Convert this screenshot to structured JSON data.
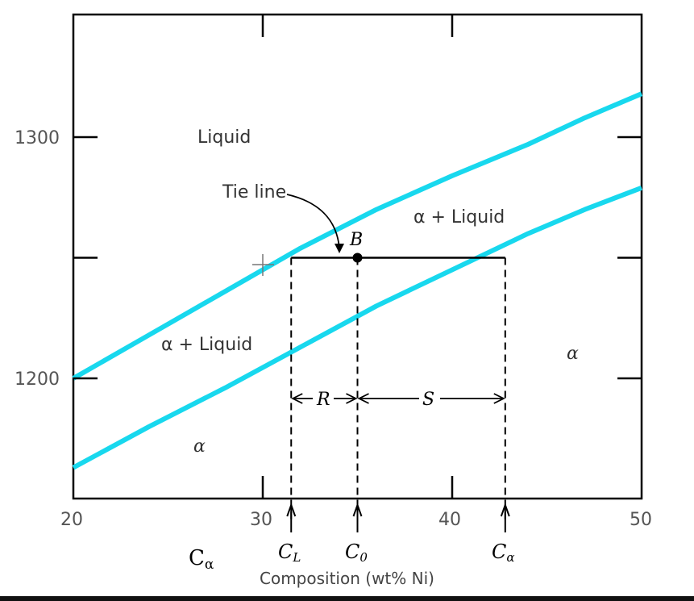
{
  "chart_data": {
    "type": "phase-diagram",
    "xlabel": "Composition (wt% Ni)",
    "xlim": [
      20,
      50
    ],
    "ylim": [
      1150,
      1350
    ],
    "x_ticks": [
      "20",
      "30",
      "40",
      "50"
    ],
    "y_ticks": [
      "1300",
      "1200"
    ],
    "curves": [
      {
        "name": "liquidus",
        "color": "#18d8ee",
        "points": [
          [
            20,
            1200
          ],
          [
            24,
            1218
          ],
          [
            28,
            1236
          ],
          [
            32,
            1254
          ],
          [
            36,
            1270
          ],
          [
            40,
            1284
          ],
          [
            44,
            1297
          ],
          [
            47,
            1308
          ],
          [
            50,
            1318
          ]
        ]
      },
      {
        "name": "solidus",
        "color": "#18d8ee",
        "points": [
          [
            20,
            1163
          ],
          [
            24,
            1180
          ],
          [
            28,
            1196
          ],
          [
            32,
            1213
          ],
          [
            36,
            1230
          ],
          [
            40,
            1245
          ],
          [
            44,
            1260
          ],
          [
            47,
            1270
          ],
          [
            50,
            1279
          ]
        ]
      }
    ],
    "tie_line": {
      "temperature": 1250,
      "x_from": 31.5,
      "x_to": 42.8
    },
    "point_B": {
      "x": 35,
      "y": 1250,
      "label": "B"
    },
    "region_labels": {
      "liquid": "Liquid",
      "alpha_liquid_upper": "α + Liquid",
      "alpha_liquid_lower": "α + Liquid",
      "alpha_left": "α",
      "alpha_right": "α"
    },
    "annotations": {
      "tie_line": "Tie line",
      "R": "R",
      "S": "S",
      "CL": "C",
      "CL_sub": "L",
      "C0": "C",
      "C0_sub": "0",
      "Calpha": "C",
      "Calpha_sub": "α",
      "Calpha_outer": "C",
      "Calpha_outer_sub": "α"
    },
    "grid": false
  }
}
